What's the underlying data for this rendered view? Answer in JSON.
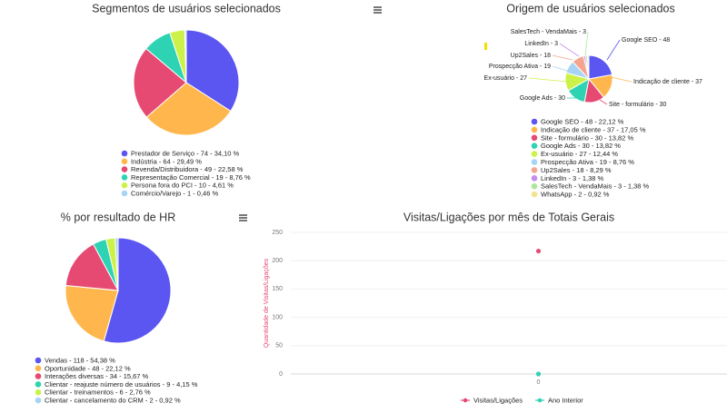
{
  "chart_data": [
    {
      "type": "pie",
      "title": "Segmentos de usuários selecionados",
      "categories": [
        "Prestador de Serviço - 74 - 34,10 %",
        "Indústria - 64 - 29,49 %",
        "Revenda/Distribuidora - 49 - 22,58 %",
        "Representação Comercial - 19 - 8,76 %",
        "Persona fora do PCI - 10 - 4,61 %",
        "Comércio/Varejo - 1 - 0,46 %"
      ],
      "values": [
        74,
        64,
        49,
        19,
        10,
        1
      ],
      "colors": [
        "#5b55f2",
        "#ffb74d",
        "#e64a73",
        "#2ed3b4",
        "#ccf24a",
        "#a7d4f5"
      ]
    },
    {
      "type": "pie",
      "title": "Origem de usuários selecionados",
      "categories": [
        "Google SEO - 48 - 22,12 %",
        "Indicação de cliente - 37 - 17,05 %",
        "Site - formulário - 30 - 13,82 %",
        "Google Ads - 30 - 13,82 %",
        "Ex-usuário - 27 - 12,44 %",
        "Prospecção Ativa - 19 - 8,76 %",
        "Up2Sales - 18 - 8,29 %",
        "LinkedIn - 3 - 1,38 %",
        "SalesTech - VendaMais - 3 - 1,38 %",
        "WhatsApp - 2 - 0,92 %"
      ],
      "values": [
        48,
        37,
        30,
        30,
        27,
        19,
        18,
        3,
        3,
        2
      ],
      "value_labels": [
        "Google SEO - 48",
        "Indicação de cliente - 37",
        "Site - formulário - 30",
        "Google Ads - 30",
        "Ex-usuário - 27",
        "Prospecção Ativa - 19",
        "Up2Sales - 18",
        "LinkedIn - 3",
        "SalesTech - VendaMais - 3",
        null
      ],
      "colors": [
        "#5b55f2",
        "#ffb74d",
        "#e64a73",
        "#2ed3b4",
        "#ccf24a",
        "#a7d4f5",
        "#f5a48f",
        "#c58bf2",
        "#a9e89e",
        "#f2e38f"
      ]
    },
    {
      "type": "pie",
      "title": "% por resultado de HR",
      "categories": [
        "Vendas - 118 - 54,38 %",
        "Oportunidade - 48 - 22,12 %",
        "Interações diversas - 34 - 15,67 %",
        "Clientar - reajuste número de usuários - 9 - 4,15 %",
        "Clientar - treinamentos - 6 - 2,76 %",
        "Clientar - cancelamento do CRM - 2 - 0,92 %"
      ],
      "values": [
        118,
        48,
        34,
        9,
        6,
        2
      ],
      "colors": [
        "#5b55f2",
        "#ffb74d",
        "#e64a73",
        "#2ed3b4",
        "#ccf24a",
        "#a7d4f5"
      ]
    },
    {
      "type": "line",
      "title": "Visitas/Ligações por mês de Totais Gerais",
      "y_label": "Quantidade de Visitas/Ligações",
      "categories": [
        "0"
      ],
      "series": [
        {
          "name": "Visitas/Ligações",
          "color": "#e64a73",
          "values": [
            217
          ]
        },
        {
          "name": "Ano Interior",
          "color": "#2ed3b4",
          "values": [
            0
          ]
        }
      ],
      "ylim": [
        0,
        250
      ],
      "yticks": [
        0,
        50,
        100,
        150,
        200,
        250
      ],
      "grid": true
    }
  ]
}
